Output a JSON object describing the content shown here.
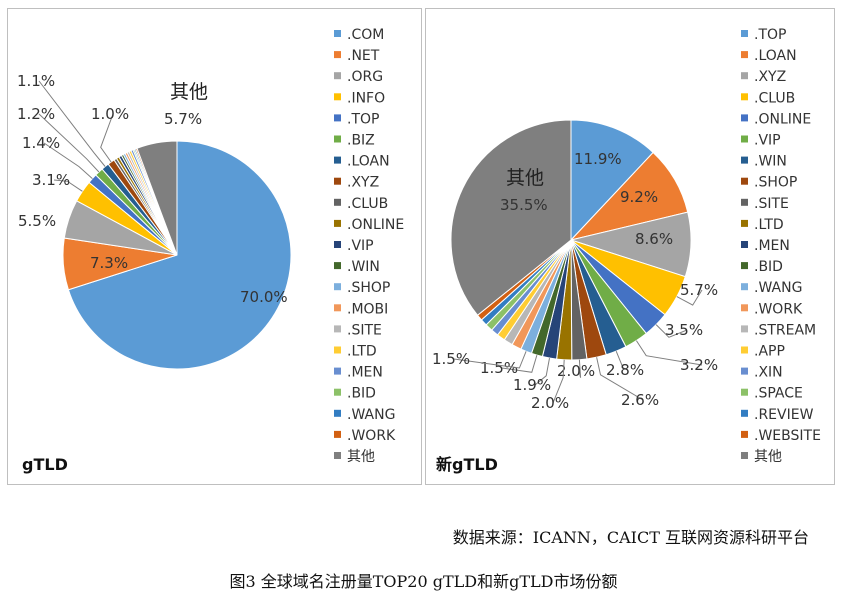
{
  "chart_data": [
    {
      "type": "pie",
      "panel_label": "gTLD",
      "categories": [
        ".COM",
        ".NET",
        ".ORG",
        ".INFO",
        ".TOP",
        ".BIZ",
        ".LOAN",
        ".XYZ",
        ".CLUB",
        ".ONLINE",
        ".VIP",
        ".WIN",
        ".SHOP",
        ".MOBI",
        ".SITE",
        ".LTD",
        ".MEN",
        ".BID",
        ".WANG",
        ".WORK",
        "其他"
      ],
      "values": [
        70.0,
        7.3,
        5.5,
        3.1,
        1.4,
        1.2,
        1.1,
        1.0,
        0.4,
        0.4,
        0.4,
        0.3,
        0.3,
        0.3,
        0.3,
        0.3,
        0.3,
        0.2,
        0.2,
        0.2,
        5.7
      ],
      "data_labels": [
        {
          "category": ".COM",
          "text": "70.0%"
        },
        {
          "category": ".NET",
          "text": "7.3%"
        },
        {
          "category": ".ORG",
          "text": "5.5%"
        },
        {
          "category": ".INFO",
          "text": "3.1%"
        },
        {
          "category": ".TOP",
          "text": "1.4%"
        },
        {
          "category": ".BIZ",
          "text": "1.2%"
        },
        {
          "category": ".LOAN",
          "text": "1.1%"
        },
        {
          "category": ".XYZ",
          "text": "1.0%"
        },
        {
          "category": "其他",
          "text": "5.7%"
        }
      ],
      "legend_position": "right"
    },
    {
      "type": "pie",
      "panel_label": "新gTLD",
      "categories": [
        ".TOP",
        ".LOAN",
        ".XYZ",
        ".CLUB",
        ".ONLINE",
        ".VIP",
        ".WIN",
        ".SHOP",
        ".SITE",
        ".LTD",
        ".MEN",
        ".BID",
        ".WANG",
        ".WORK",
        ".STREAM",
        ".APP",
        ".XIN",
        ".SPACE",
        ".REVIEW",
        ".WEBSITE",
        "其他"
      ],
      "values": [
        11.9,
        9.2,
        8.6,
        5.7,
        3.5,
        3.2,
        2.8,
        2.6,
        2.0,
        2.0,
        1.9,
        1.5,
        1.5,
        1.3,
        1.2,
        1.1,
        1.0,
        1.0,
        0.9,
        0.8,
        35.5
      ],
      "data_labels": [
        {
          "category": ".TOP",
          "text": "11.9%"
        },
        {
          "category": ".LOAN",
          "text": "9.2%"
        },
        {
          "category": ".XYZ",
          "text": "8.6%"
        },
        {
          "category": ".CLUB",
          "text": "5.7%"
        },
        {
          "category": ".ONLINE",
          "text": "3.5%"
        },
        {
          "category": ".VIP",
          "text": "3.2%"
        },
        {
          "category": ".WIN",
          "text": "2.8%"
        },
        {
          "category": ".SHOP",
          "text": "2.6%"
        },
        {
          "category": ".SITE",
          "text": "2.0%"
        },
        {
          "category": ".LTD",
          "text": "2.0%"
        },
        {
          "category": ".MEN",
          "text": "1.9%"
        },
        {
          "category": ".BID",
          "text": "1.5%"
        },
        {
          "category": ".WANG",
          "text": "1.5%"
        },
        {
          "category": "其他",
          "text": "35.5%"
        }
      ],
      "legend_position": "right"
    }
  ],
  "colors": [
    "#5B9BD5",
    "#ED7D31",
    "#A5A5A5",
    "#FFC000",
    "#4472C4",
    "#70AD47",
    "#255E91",
    "#9E480E",
    "#636363",
    "#997300",
    "#264478",
    "#43682B",
    "#7CAFDD",
    "#F1975A",
    "#B7B7B7",
    "#FFCD33",
    "#698ED0",
    "#8CC168",
    "#327DC2",
    "#D26012",
    "#7F7F7F"
  ],
  "footer": {
    "source": "数据来源：ICANN，CAICT 互联网资源科研平台",
    "caption": "图3 全球域名注册量TOP20 gTLD和新gTLD市场份额"
  }
}
